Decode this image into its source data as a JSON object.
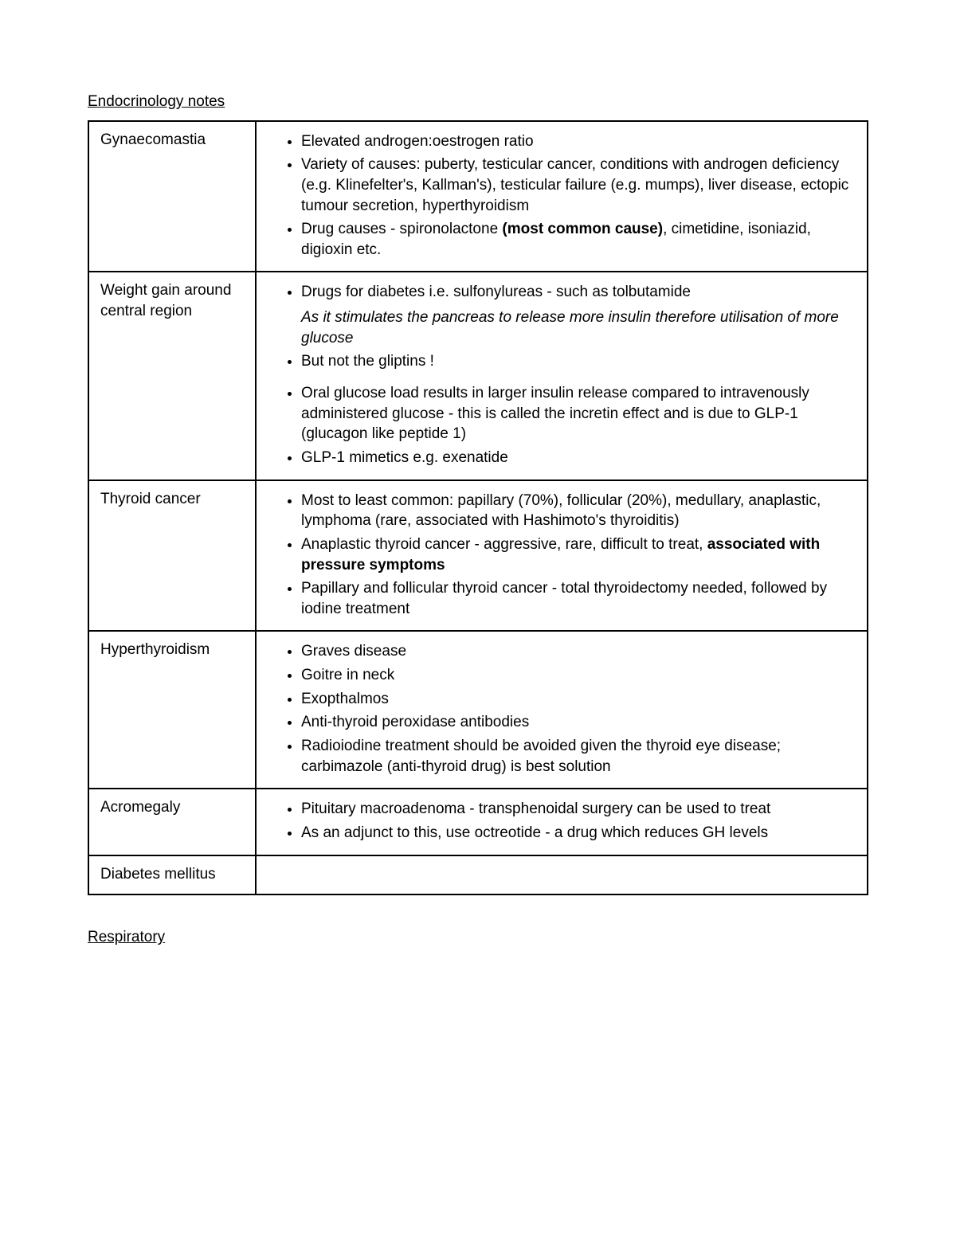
{
  "heading1": "Endocrinology notes",
  "heading2": "Respiratory",
  "rows": {
    "r0": {
      "term": "Gynaecomastia",
      "b0": "Elevated androgen:oestrogen ratio",
      "b1": "Variety of causes: puberty, testicular cancer, conditions with androgen deficiency (e.g. Klinefelter's, Kallman's), testicular failure (e.g. mumps), liver disease, ectopic tumour secretion, hyperthyroidism",
      "b2_pre": "Drug causes - spironolactone ",
      "b2_bold": "(most common cause)",
      "b2_post": ", cimetidine, isoniazid, digioxin etc."
    },
    "r1": {
      "term": "Weight gain around central region",
      "b0": "Drugs for diabetes i.e. sulfonylureas - such as tolbutamide",
      "b0_italic": "As it stimulates the pancreas to release more insulin therefore utilisation of more glucose",
      "b1": "But not the gliptins !",
      "b2": "Oral glucose load results in larger insulin release compared to intravenously administered glucose - this is called the incretin effect and is due to GLP-1 (glucagon like peptide 1)",
      "b3": "GLP-1 mimetics e.g. exenatide"
    },
    "r2": {
      "term": "Thyroid cancer",
      "b0": "Most to least common: papillary (70%), follicular (20%), medullary, anaplastic, lymphoma (rare, associated with Hashimoto's thyroiditis)",
      "b1_pre": "Anaplastic thyroid cancer - aggressive, rare, difficult to treat, ",
      "b1_bold": "associated with pressure symptoms",
      "b2": "Papillary and follicular thyroid cancer - total thyroidectomy needed, followed by iodine treatment"
    },
    "r3": {
      "term": "Hyperthyroidism",
      "b0": "Graves disease",
      "b1": "Goitre in neck",
      "b2": "Exopthalmos",
      "b3": "Anti-thyroid peroxidase antibodies",
      "b4": "Radioiodine treatment should be avoided given the thyroid eye disease; carbimazole (anti-thyroid drug) is best solution"
    },
    "r4": {
      "term": "Acromegaly",
      "b0": "Pituitary macroadenoma - transphenoidal surgery can be used to treat",
      "b1": "As an adjunct to this, use octreotide - a drug which reduces GH levels"
    },
    "r5": {
      "term": "Diabetes mellitus"
    }
  }
}
